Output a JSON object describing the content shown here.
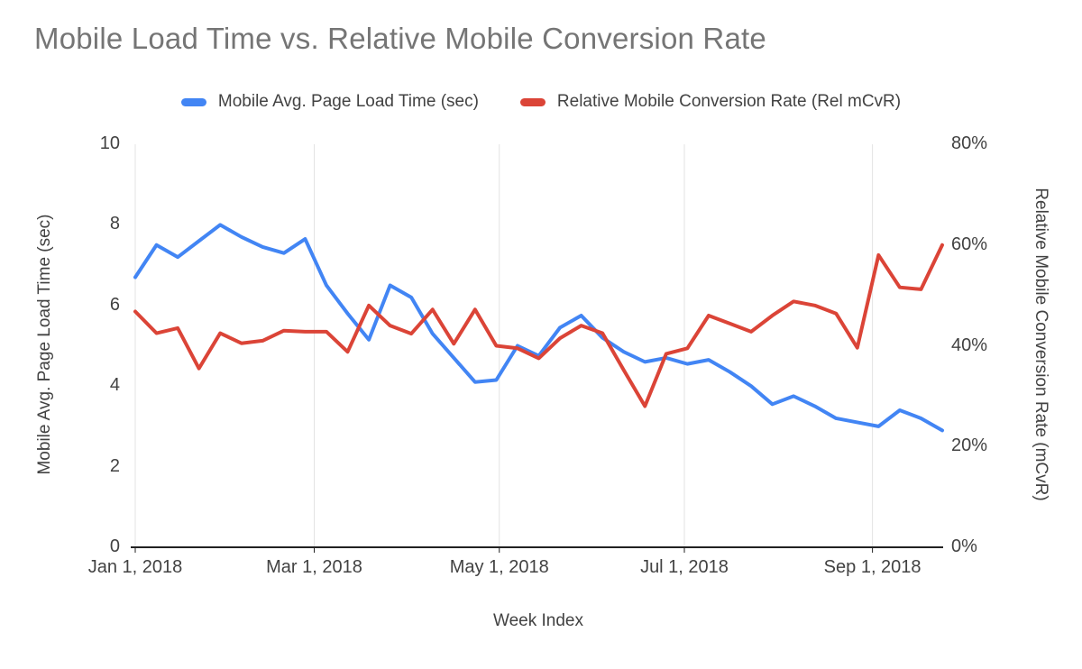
{
  "chart_data": {
    "type": "line",
    "title": "Mobile Load Time vs. Relative Mobile Conversion Rate",
    "xlabel": "Week Index",
    "ylabel_left": "Mobile Avg. Page Load Time (sec)",
    "ylabel_right": "Relative Mobile Conversion Rate (mCvR)",
    "legend_position": "top",
    "grid": "vertical-only",
    "x_tick_labels": [
      "Jan 1, 2018",
      "Mar 1, 2018",
      "May 1, 2018",
      "Jul 1, 2018",
      "Sep 1, 2018"
    ],
    "x_tick_days": [
      0,
      59,
      120,
      181,
      243
    ],
    "x_total_days": 266,
    "x_step_days": 7,
    "y_left": {
      "min": 0,
      "max": 10,
      "ticks": [
        0,
        2,
        4,
        6,
        8,
        10
      ]
    },
    "y_right": {
      "min": 0,
      "max": 80,
      "tick_labels": [
        "0%",
        "20%",
        "40%",
        "60%",
        "80%"
      ],
      "tick_values": [
        0,
        20,
        40,
        60,
        80
      ]
    },
    "series": [
      {
        "name": "Mobile Avg. Page Load Time (sec)",
        "axis": "left",
        "color": "#4285f4",
        "unit": "sec",
        "values": [
          6.7,
          7.5,
          7.2,
          7.6,
          8.0,
          7.7,
          7.45,
          7.3,
          7.65,
          6.5,
          5.8,
          5.15,
          6.5,
          6.2,
          5.3,
          4.7,
          4.1,
          4.15,
          5.0,
          4.75,
          5.45,
          5.75,
          5.2,
          4.85,
          4.6,
          4.7,
          4.55,
          4.65,
          4.35,
          4.0,
          3.55,
          3.75,
          3.5,
          3.2,
          3.1,
          3.0,
          3.4,
          3.2,
          2.9
        ]
      },
      {
        "name": "Relative Mobile Conversion Rate (Rel mCvR)",
        "axis": "right",
        "color": "#db4437",
        "unit": "%",
        "values": [
          46.8,
          42.5,
          43.5,
          35.5,
          42.5,
          40.5,
          41,
          43,
          42.8,
          42.8,
          38.8,
          48,
          44,
          42.4,
          47.2,
          40.4,
          47.2,
          40,
          39.5,
          37.5,
          41.5,
          44,
          42.5,
          35.2,
          28,
          38.4,
          39.5,
          46,
          44.4,
          42.8,
          46,
          48.8,
          48,
          46.4,
          39.6,
          58,
          51.6,
          51.2,
          60
        ]
      }
    ],
    "axis_color": "#212121",
    "gridline_color": "#e3e3e3"
  }
}
